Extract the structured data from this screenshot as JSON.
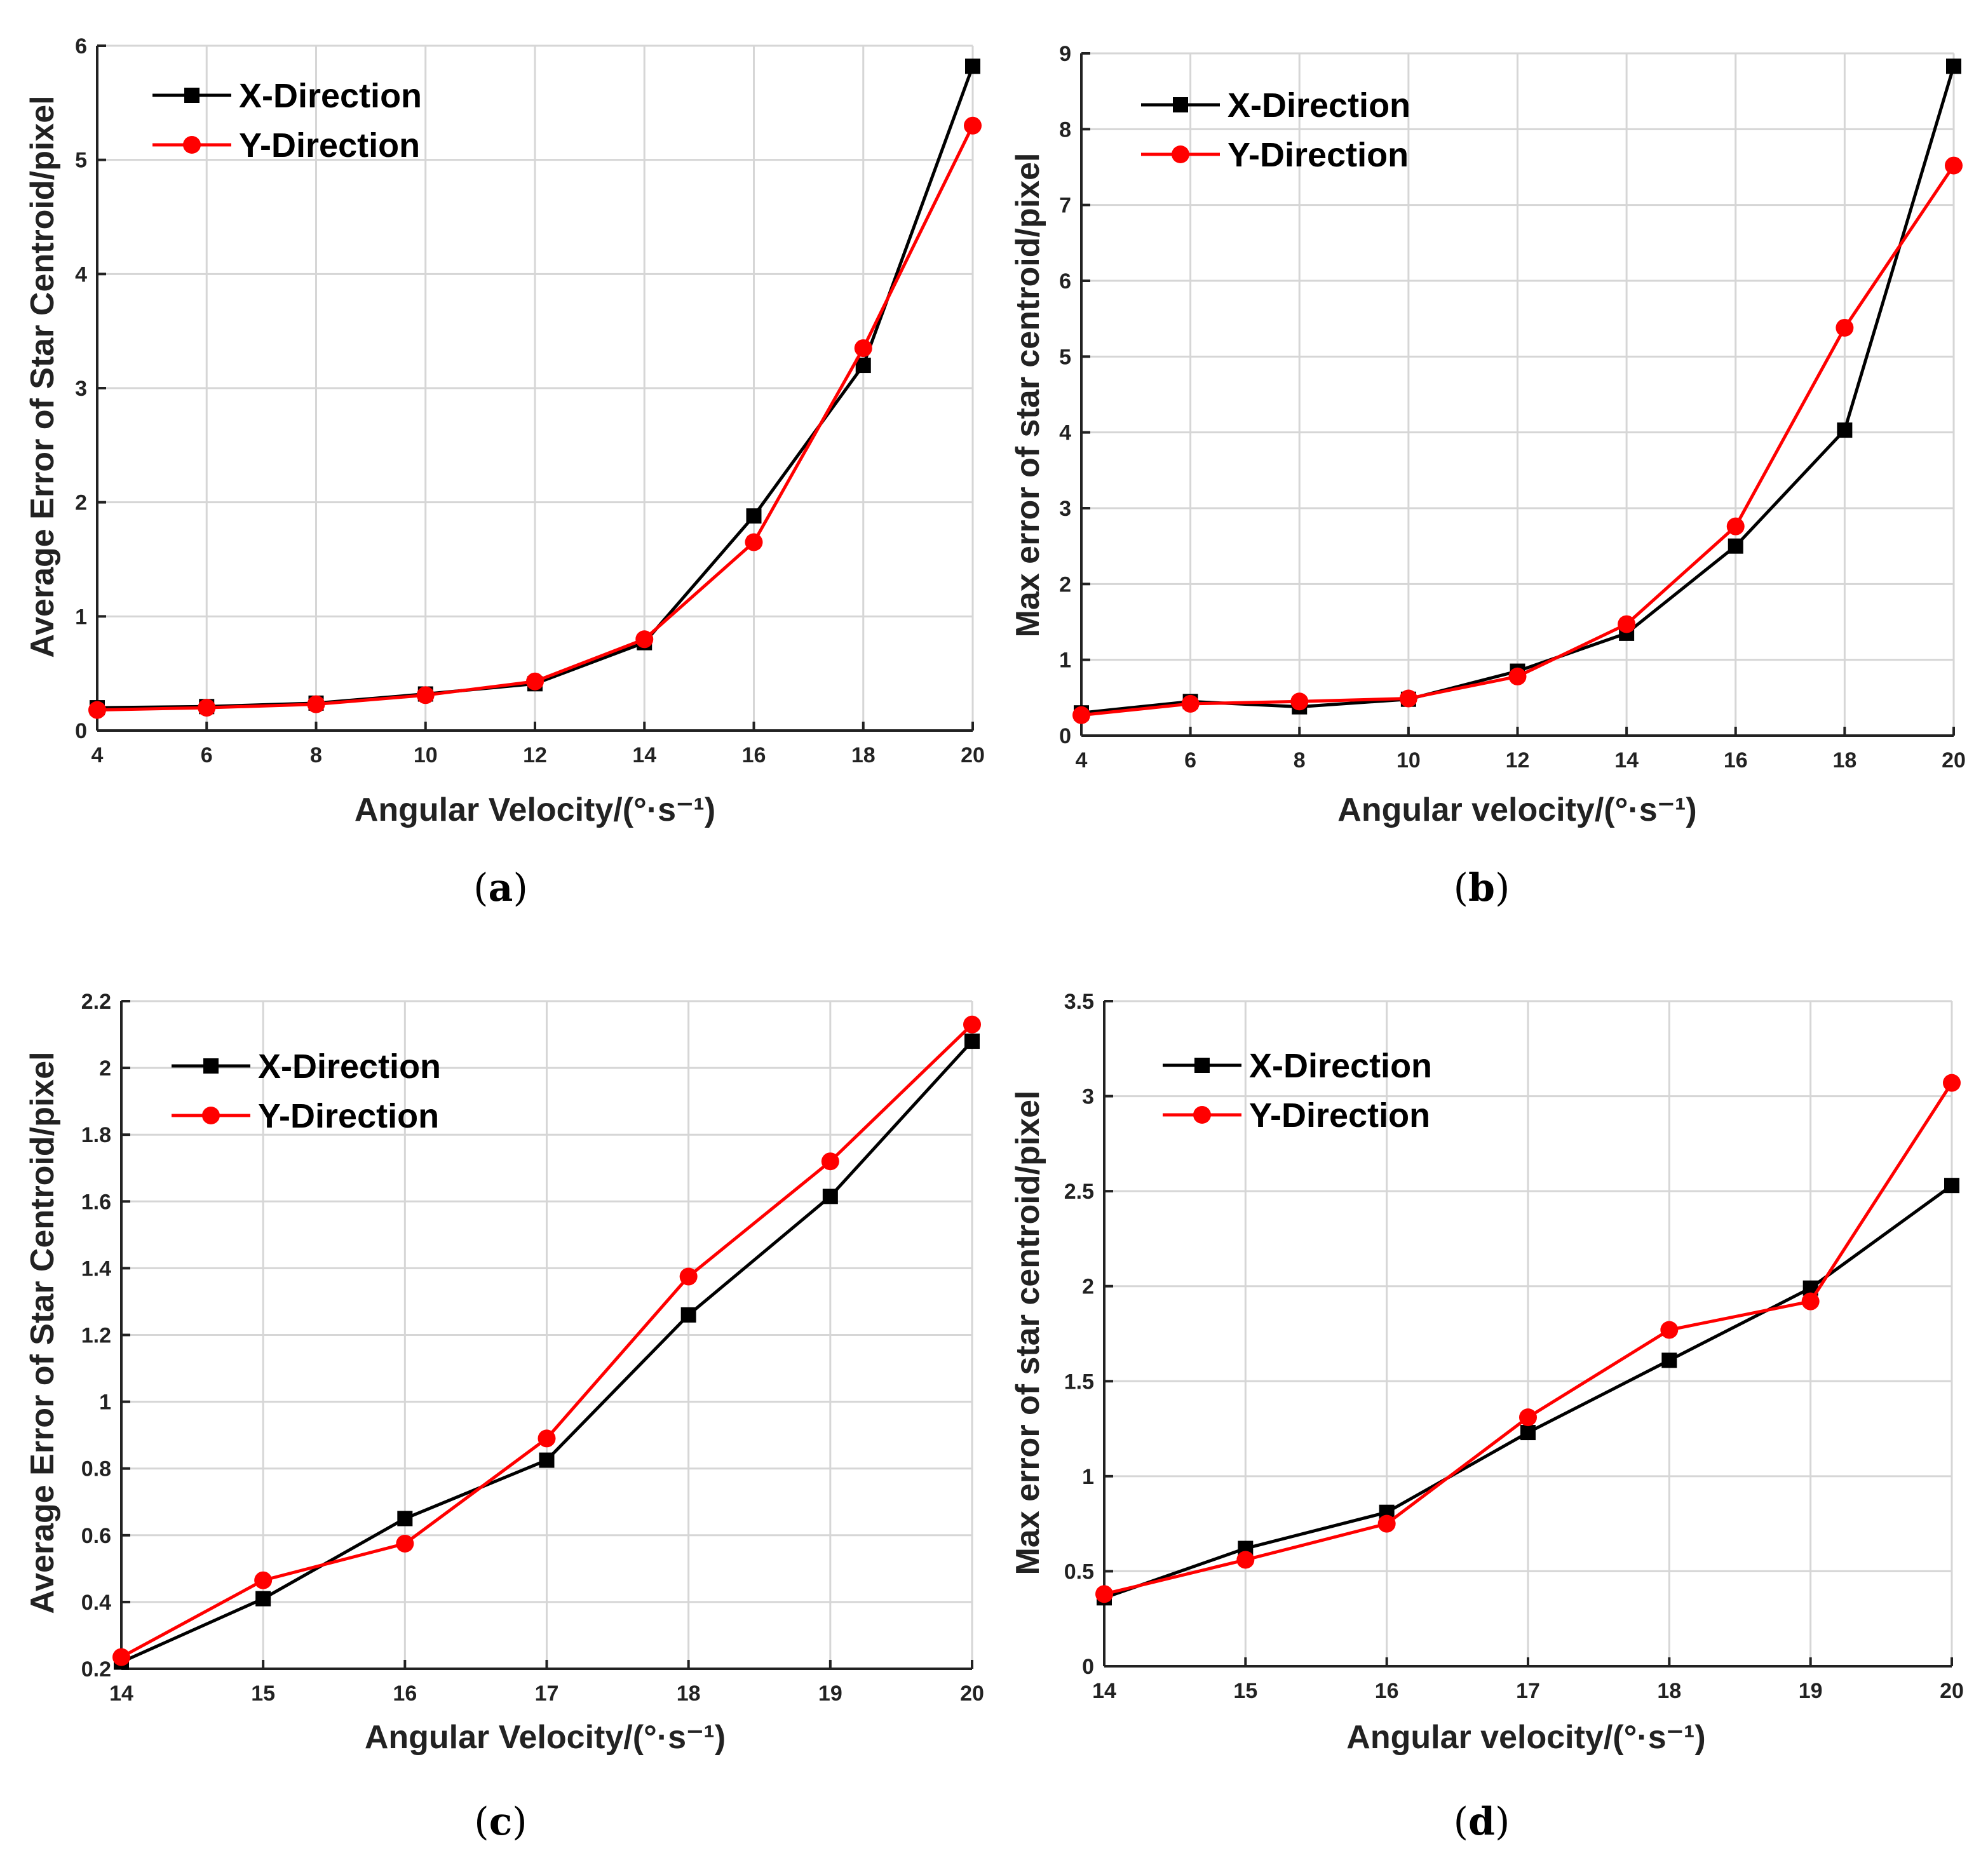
{
  "figure": {
    "panels": [
      {
        "caption": "(a)",
        "caption_letter": "a"
      },
      {
        "caption": "(b)",
        "caption_letter": "b"
      },
      {
        "caption": "(c)",
        "caption_letter": "c"
      },
      {
        "caption": "(d)",
        "caption_letter": "d"
      }
    ]
  },
  "chart_data": [
    {
      "type": "line",
      "title": "",
      "xlabel": "Angular Velocity/(°·s⁻¹)",
      "ylabel": "Average Error of Star Centroid/pixel",
      "x": [
        4,
        6,
        8,
        10,
        12,
        14,
        16,
        18,
        20
      ],
      "xlim": [
        4,
        20
      ],
      "xticks": [
        4,
        6,
        8,
        10,
        12,
        14,
        16,
        18,
        20
      ],
      "xtick_labels": [
        "4",
        "6",
        "8",
        "10",
        "12",
        "14",
        "16",
        "18",
        "20"
      ],
      "ylim": [
        0,
        6
      ],
      "yticks": [
        0,
        1,
        2,
        3,
        4,
        5,
        6
      ],
      "ytick_labels": [
        "0",
        "1",
        "2",
        "3",
        "4",
        "5",
        "6"
      ],
      "grid": true,
      "legend_position": "top-left",
      "series": [
        {
          "name": "X-Direction",
          "color": "#000000",
          "marker": "square",
          "values": [
            0.2,
            0.21,
            0.24,
            0.32,
            0.41,
            0.77,
            1.88,
            3.2,
            5.82
          ]
        },
        {
          "name": "Y-Direction",
          "color": "#ff0000",
          "marker": "circle",
          "values": [
            0.18,
            0.2,
            0.23,
            0.31,
            0.43,
            0.8,
            1.65,
            3.35,
            5.3
          ]
        }
      ]
    },
    {
      "type": "line",
      "title": "",
      "xlabel": "Angular velocity/(°·s⁻¹)",
      "ylabel": "Max error of star centroid/pixel",
      "x": [
        4,
        6,
        8,
        10,
        12,
        14,
        16,
        18,
        20
      ],
      "xlim": [
        4,
        20
      ],
      "xticks": [
        4,
        6,
        8,
        10,
        12,
        14,
        16,
        18,
        20
      ],
      "xtick_labels": [
        "4",
        "6",
        "8",
        "10",
        "12",
        "14",
        "16",
        "18",
        "20"
      ],
      "ylim": [
        0,
        9
      ],
      "yticks": [
        0,
        1,
        2,
        3,
        4,
        5,
        6,
        7,
        8,
        9
      ],
      "ytick_labels": [
        "0",
        "1",
        "2",
        "3",
        "4",
        "5",
        "6",
        "7",
        "8",
        "9"
      ],
      "grid": true,
      "legend_position": "top-left",
      "series": [
        {
          "name": "X-Direction",
          "color": "#000000",
          "marker": "square",
          "values": [
            0.3,
            0.45,
            0.38,
            0.48,
            0.85,
            1.35,
            2.5,
            4.03,
            8.83
          ]
        },
        {
          "name": "Y-Direction",
          "color": "#ff0000",
          "marker": "circle",
          "values": [
            0.27,
            0.42,
            0.45,
            0.49,
            0.78,
            1.47,
            2.76,
            5.38,
            7.52
          ]
        }
      ]
    },
    {
      "type": "line",
      "title": "",
      "xlabel": "Angular Velocity/(°·s⁻¹)",
      "ylabel": "Average Error of Star Centroid/pixel",
      "x": [
        14,
        15,
        16,
        17,
        18,
        19,
        20
      ],
      "xlim": [
        14,
        20
      ],
      "xticks": [
        14,
        15,
        16,
        17,
        18,
        19,
        20
      ],
      "xtick_labels": [
        "14",
        "15",
        "16",
        "17",
        "18",
        "19",
        "20"
      ],
      "ylim": [
        0.2,
        2.2
      ],
      "yticks": [
        0.2,
        0.4,
        0.6,
        0.8,
        1.0,
        1.2,
        1.4,
        1.6,
        1.8,
        2.0,
        2.2
      ],
      "ytick_labels": [
        "0.2",
        "0.4",
        "0.6",
        "0.8",
        "1",
        "1.2",
        "1.4",
        "1.6",
        "1.8",
        "2",
        "2.2"
      ],
      "grid": true,
      "legend_position": "top-left",
      "series": [
        {
          "name": "X-Direction",
          "color": "#000000",
          "marker": "square",
          "values": [
            0.22,
            0.41,
            0.65,
            0.825,
            1.26,
            1.615,
            2.08
          ]
        },
        {
          "name": "Y-Direction",
          "color": "#ff0000",
          "marker": "circle",
          "values": [
            0.235,
            0.465,
            0.575,
            0.89,
            1.375,
            1.72,
            2.13
          ]
        }
      ]
    },
    {
      "type": "line",
      "title": "",
      "xlabel": "Angular velocity/(°·s⁻¹)",
      "ylabel": "Max error of star centroid/pixel",
      "x": [
        14,
        15,
        16,
        17,
        18,
        19,
        20
      ],
      "xlim": [
        14,
        20
      ],
      "xticks": [
        14,
        15,
        16,
        17,
        18,
        19,
        20
      ],
      "xtick_labels": [
        "14",
        "15",
        "16",
        "17",
        "18",
        "19",
        "20"
      ],
      "ylim": [
        0,
        3.5
      ],
      "yticks": [
        0,
        0.5,
        1.0,
        1.5,
        2.0,
        2.5,
        3.0,
        3.5
      ],
      "ytick_labels": [
        "0",
        "0.5",
        "1",
        "1.5",
        "2",
        "2.5",
        "3",
        "3.5"
      ],
      "grid": true,
      "legend_position": "top-left",
      "series": [
        {
          "name": "X-Direction",
          "color": "#000000",
          "marker": "square",
          "values": [
            0.36,
            0.62,
            0.81,
            1.23,
            1.61,
            1.99,
            2.53
          ]
        },
        {
          "name": "Y-Direction",
          "color": "#ff0000",
          "marker": "circle",
          "values": [
            0.38,
            0.56,
            0.75,
            1.31,
            1.77,
            1.92,
            3.07
          ]
        }
      ]
    }
  ]
}
